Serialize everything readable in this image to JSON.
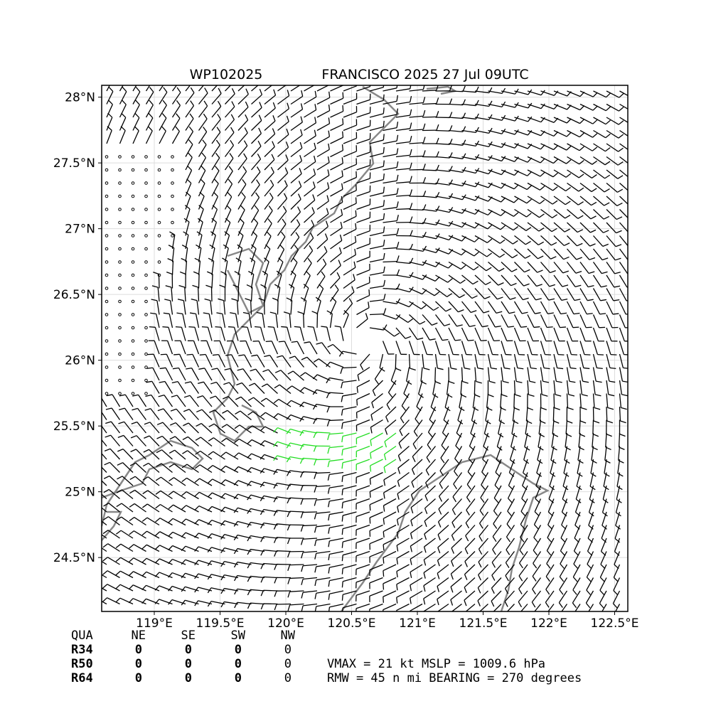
{
  "map": {
    "title_left": "WP102025",
    "title_right": "FRANCISCO 2025 27 Jul 09UTC",
    "xlim": [
      118.6,
      122.6
    ],
    "ylim": [
      24.09,
      28.09
    ],
    "xticks": [
      {
        "value": 119,
        "label": "119°E"
      },
      {
        "value": 119.5,
        "label": "119.5°E"
      },
      {
        "value": 120,
        "label": "120°E"
      },
      {
        "value": 120.5,
        "label": "120.5°E"
      },
      {
        "value": 121,
        "label": "121°E"
      },
      {
        "value": 121.5,
        "label": "121.5°E"
      },
      {
        "value": 122,
        "label": "122°E"
      },
      {
        "value": 122.5,
        "label": "122.5°E"
      }
    ],
    "yticks": [
      {
        "value": 24.5,
        "label": "24.5°N"
      },
      {
        "value": 25,
        "label": "25°N"
      },
      {
        "value": 25.5,
        "label": "25.5°N"
      },
      {
        "value": 26,
        "label": "26°N"
      },
      {
        "value": 26.5,
        "label": "26.5°N"
      },
      {
        "value": 27,
        "label": "27°N"
      },
      {
        "value": 27.5,
        "label": "27.5°N"
      },
      {
        "value": 28,
        "label": "28°N"
      }
    ],
    "grid": true
  },
  "quadrant_table": {
    "header": [
      "QUA",
      "NE",
      "SE",
      "SW",
      "NW"
    ],
    "rows": [
      [
        "R34",
        0,
        0,
        0,
        0
      ],
      [
        "R50",
        0,
        0,
        0,
        0
      ],
      [
        "R64",
        0,
        0,
        0,
        0
      ]
    ]
  },
  "stats": [
    "VMAX =  21 kt MSLP = 1009.6 hPa",
    "RMW =  45 n mi BEARING = 270 degrees"
  ]
}
